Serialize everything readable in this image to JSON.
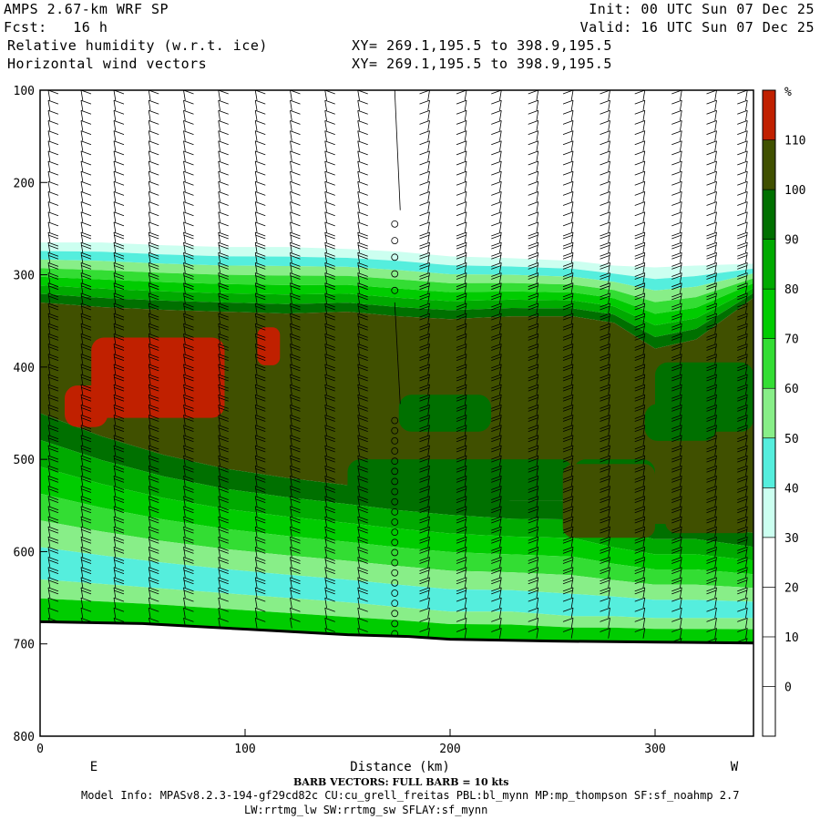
{
  "header": {
    "model": "AMPS 2.67-km WRF SP",
    "fcst": "Fcst:   16 h",
    "field1": "Relative humidity (w.r.t. ice)",
    "field2": "Horizontal wind vectors",
    "xy1": "XY= 269.1,195.5 to 398.9,195.5",
    "xy2": "XY= 269.1,195.5 to 398.9,195.5",
    "init": "Init: 00 UTC Sun 07 Dec 25",
    "valid": "Valid: 16 UTC Sun 07 Dec 25"
  },
  "footer": {
    "barb_note": "BARB VECTORS:  FULL BARB = 10 kts",
    "model_info": "Model Info: MPASv8.2.3-194-gf29cd82c CU:cu_grell_freitas PBL:bl_mynn MP:mp_thompson SF:sf_noahmp 2.7",
    "model_info2": "LW:rrtmg_lw SW:rrtmg_sw SFLAY:sf_mynn"
  },
  "chart_data": {
    "type": "heatmap",
    "title": "Relative humidity (w.r.t. ice)",
    "xlabel": "Distance (km)",
    "ylabel": "",
    "x_range": [
      0,
      348
    ],
    "y_range": [
      100,
      800
    ],
    "y_inverted": true,
    "x_ticks": [
      0,
      100,
      200,
      300
    ],
    "y_ticks": [
      100,
      200,
      300,
      400,
      500,
      600,
      700,
      800
    ],
    "x_end_labels": {
      "left": "E",
      "right": "W"
    },
    "colorbar": {
      "unit": "%",
      "levels": [
        0,
        10,
        20,
        30,
        40,
        50,
        60,
        70,
        80,
        90,
        100,
        110
      ],
      "colors": [
        "#ffffff",
        "#ffffff",
        "#ffffff",
        "#ffffff",
        "#ccfff0",
        "#55eedd",
        "#88ee88",
        "#33dd33",
        "#00cc00",
        "#00aa00",
        "#007000",
        "#405000",
        "#c02000"
      ]
    },
    "terrain_surface": {
      "x": [
        0,
        50,
        100,
        150,
        180,
        200,
        250,
        300,
        348
      ],
      "p": [
        676,
        678,
        684,
        690,
        692,
        695,
        697,
        698,
        699
      ]
    },
    "rh_profiles": {
      "x": [
        0,
        30,
        60,
        90,
        120,
        150,
        175,
        200,
        230,
        260,
        280,
        300,
        320,
        348
      ],
      "cloud_top_p": [
        265,
        265,
        268,
        270,
        270,
        272,
        275,
        280,
        282,
        285,
        290,
        292,
        290,
        288
      ],
      "moist_top_p": [
        330,
        335,
        338,
        340,
        342,
        340,
        345,
        348,
        345,
        345,
        352,
        380,
        370,
        325
      ],
      "moist_bottom_p": [
        450,
        475,
        495,
        510,
        520,
        528,
        535,
        540,
        545,
        545,
        560,
        570,
        570,
        580
      ],
      "dry_layer_p": [
        630,
        635,
        640,
        645,
        650,
        655,
        660,
        665,
        665,
        670,
        670,
        672,
        672,
        672
      ]
    },
    "supersaturated_regions": [
      {
        "x_range": [
          25,
          90
        ],
        "p_range": [
          368,
          455
        ]
      },
      {
        "x_range": [
          12,
          33
        ],
        "p_range": [
          420,
          465
        ]
      },
      {
        "x_range": [
          106,
          117
        ],
        "p_range": [
          357,
          398
        ]
      }
    ],
    "wind_barbs": {
      "columns_x": [
        4,
        20,
        36,
        53,
        70,
        87,
        105,
        122,
        139,
        155,
        173,
        190,
        208,
        225,
        243,
        260,
        278,
        295,
        313,
        330,
        345
      ],
      "calm_column_x": 173,
      "unit": "kts",
      "full_barb_kts": 10
    }
  }
}
